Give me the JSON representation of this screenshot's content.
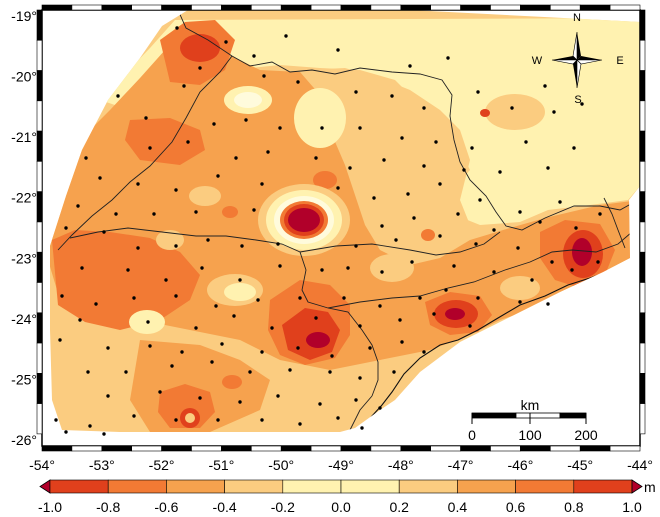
{
  "map": {
    "lon_ticks": [
      "-54°",
      "-53°",
      "-52°",
      "-51°",
      "-50°",
      "-49°",
      "-48°",
      "-47°",
      "-46°",
      "-45°",
      "-44°"
    ],
    "lat_ticks": [
      "-19°",
      "-20°",
      "-21°",
      "-22°",
      "-23°",
      "-24°",
      "-25°",
      "-26°"
    ],
    "lon_range": [
      -54,
      -44
    ],
    "lat_range": [
      -26.1,
      -18.9
    ],
    "compass": {
      "n": "N",
      "s": "S",
      "e": "E",
      "w": "W"
    },
    "scalebar": {
      "unit": "km",
      "labels": [
        "0",
        "100",
        "200"
      ]
    },
    "colorbar": {
      "unit": "m",
      "tick_labels": [
        "-1.0",
        "-0.8",
        "-0.6",
        "-0.4",
        "-0.2",
        "0.0",
        "0.2",
        "0.4",
        "0.6",
        "0.8",
        "1.0"
      ],
      "colors": [
        "#b1002a",
        "#e0401c",
        "#f27a34",
        "#f6a24e",
        "#fbcc80",
        "#fff2b0",
        "#fff2b0",
        "#fbcc80",
        "#f6a24e",
        "#f27a34",
        "#e0401c",
        "#b1002a"
      ]
    },
    "colors": {
      "yellow": "#fff2b0",
      "light_orange": "#fbcc80",
      "orange": "#f6a24e",
      "dark_orange": "#f27a34",
      "red": "#e0401c",
      "crimson": "#b1002a",
      "halo": "#fffbdc",
      "frame": "#000000"
    }
  }
}
